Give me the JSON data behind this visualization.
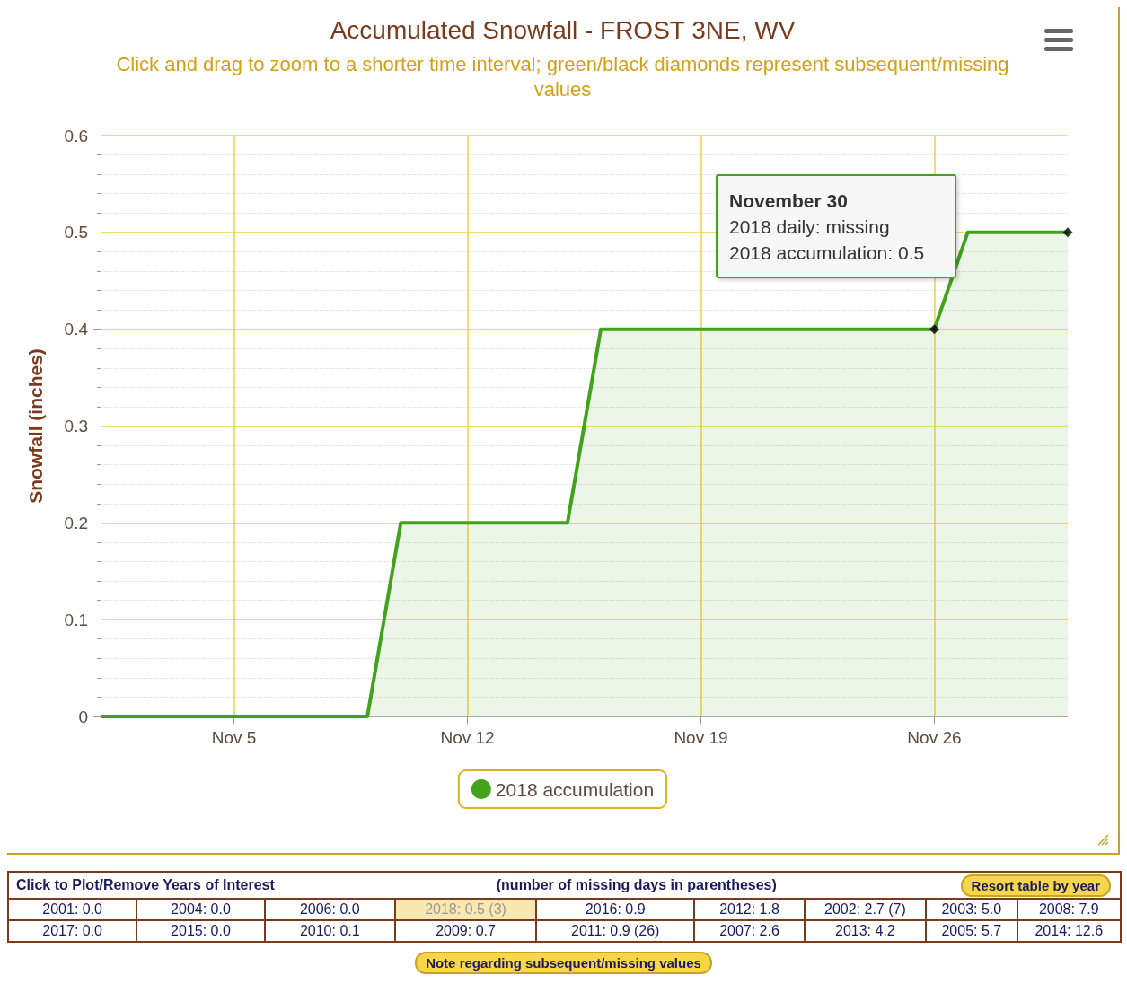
{
  "chart_data": {
    "type": "area",
    "title": "Accumulated Snowfall - FROST 3NE, WV",
    "subtitle": "Click and drag to zoom to a shorter time interval; green/black diamonds represent subsequent/missing values",
    "ylabel": "Snowfall (inches)",
    "xlim": [
      "2018-11-01",
      "2018-11-30"
    ],
    "xticks": [
      {
        "value": "2018-11-05",
        "label": "Nov 5"
      },
      {
        "value": "2018-11-12",
        "label": "Nov 12"
      },
      {
        "value": "2018-11-19",
        "label": "Nov 19"
      },
      {
        "value": "2018-11-26",
        "label": "Nov 26"
      }
    ],
    "ylim": [
      0,
      0.6
    ],
    "yticks": [
      0,
      0.1,
      0.2,
      0.3,
      0.4,
      0.5,
      0.6
    ],
    "grid": true,
    "legend": "bottom",
    "series": [
      {
        "name": "2018 accumulation",
        "color": "#43a21c",
        "marker": "none",
        "x": [
          "2018-11-01",
          "2018-11-09",
          "2018-11-10",
          "2018-11-15",
          "2018-11-16",
          "2018-11-26",
          "2018-11-27",
          "2018-11-30"
        ],
        "values": [
          0,
          0,
          0.2,
          0.2,
          0.4,
          0.4,
          0.5,
          0.5
        ]
      },
      {
        "type": "scatter",
        "color": "#000000",
        "marker": "diamond",
        "x": [
          "2018-11-26",
          "2018-11-30"
        ],
        "values": [
          0.4,
          0.5
        ]
      }
    ],
    "annotations": [
      "November 30\n2018 daily: missing\n2018 accumulation: 0.5",
      "Click to Plot/Remove Years of Interest",
      "(number of missing days in parentheses)",
      "Resort table by year",
      "2001: 0.0",
      "2004: 0.0",
      "2006: 0.0",
      "2018: 0.5 (3)",
      "2016: 0.9",
      "2012: 1.8",
      "2002: 2.7 (7)",
      "2003: 5.0",
      "2008: 7.9",
      "2017: 0.0",
      "2015: 0.0",
      "2010: 0.1",
      "2009: 0.7",
      "2011: 0.9 (26)",
      "2007: 2.6",
      "2013: 4.2",
      "2005: 5.7",
      "2014: 12.6",
      "Note regarding subsequent/missing values"
    ]
  }
}
